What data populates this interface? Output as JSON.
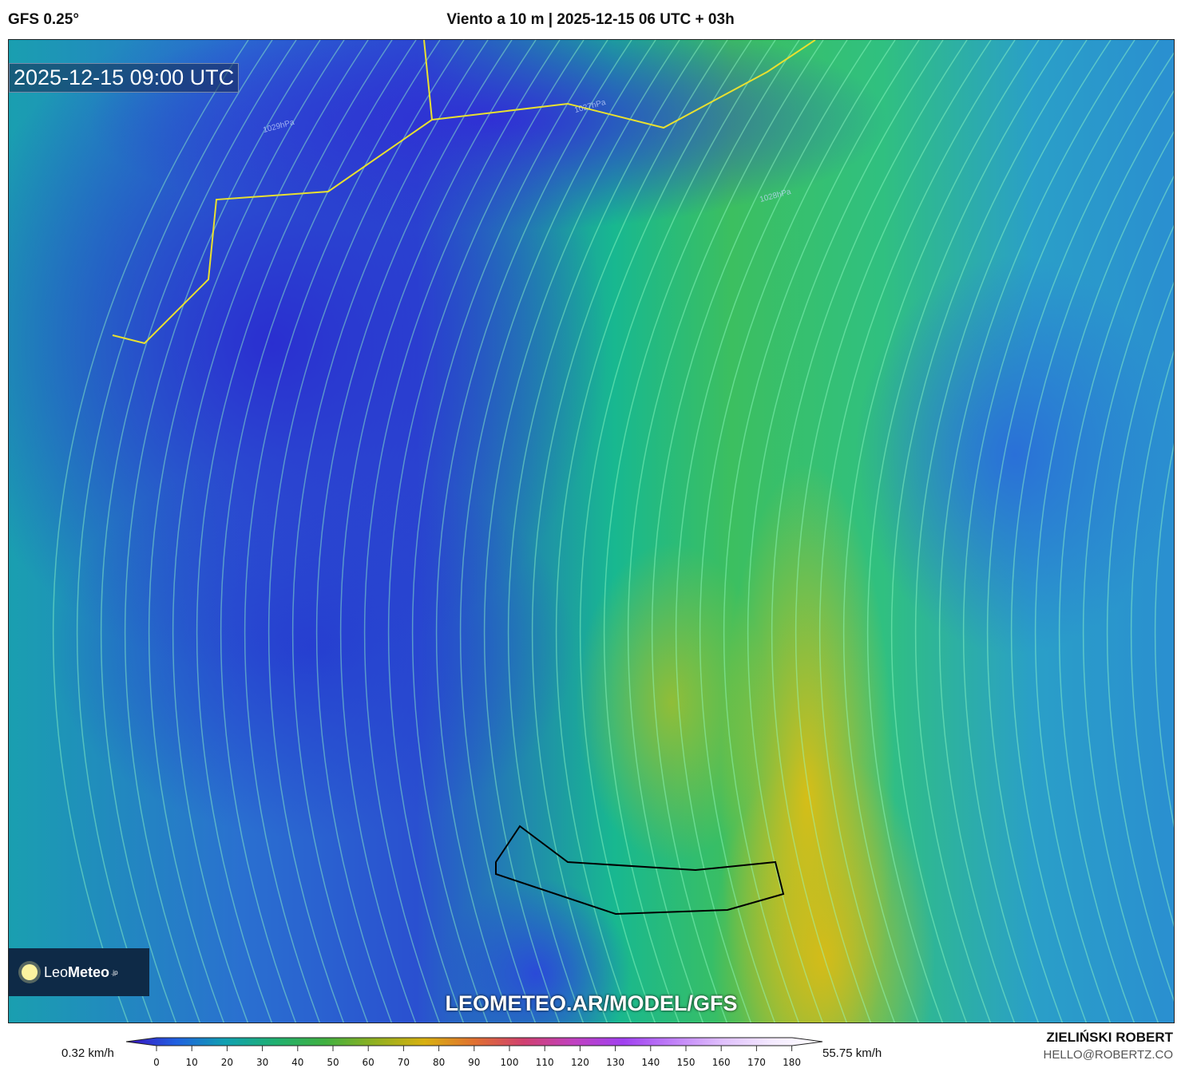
{
  "header": {
    "model": "GFS 0.25°",
    "title": "Viento a 10 m | 2025-12-15 06 UTC + 03h"
  },
  "map": {
    "valid_time": "2025-12-15 09:00 UTC",
    "watermark_url": "LEOMETEO.AR/MODEL/GFS",
    "logo": {
      "name": "Leo",
      "bold": "Meteo",
      "suffix": ".jp"
    },
    "isobar_labels": [
      "1029hPa",
      "1027hPa",
      "1028hPa"
    ]
  },
  "legend": {
    "min_label": "0.32 km/h",
    "max_label": "55.75 km/h",
    "unit": "km/h",
    "ticks": [
      "0",
      "10",
      "20",
      "30",
      "40",
      "50",
      "60",
      "70",
      "80",
      "90",
      "100",
      "110",
      "120",
      "130",
      "140",
      "150",
      "160",
      "170",
      "180"
    ],
    "colors": [
      "#3a10c0",
      "#2060e0",
      "#10a0b0",
      "#20b070",
      "#40b040",
      "#90b020",
      "#d8b010",
      "#e07030",
      "#d04070",
      "#c040c0",
      "#a040f0",
      "#c080f8",
      "#e0c0fc",
      "#f4eaff",
      "#ffffff"
    ]
  },
  "credits": {
    "author": "ZIELIŃSKI ROBERT",
    "email": "HELLO@ROBERTZ.CO"
  }
}
